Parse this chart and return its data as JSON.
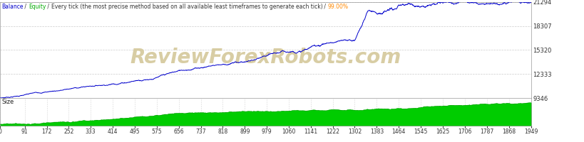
{
  "title_parts": [
    "Balance",
    " / ",
    "Equity",
    " / ",
    "Every tick (the most precise method based on all available least timeframes to generate each tick)",
    " / ",
    "99.00%"
  ],
  "title_part_colors": [
    "#0000cc",
    "#333333",
    "#00aa00",
    "#333333",
    "#333333",
    "#333333",
    "#ff8800"
  ],
  "y_min": 9346,
  "y_max": 21294,
  "y_ticks": [
    9346,
    12333,
    15320,
    18307,
    21294
  ],
  "x_ticks": [
    0,
    91,
    172,
    252,
    333,
    414,
    495,
    575,
    656,
    737,
    818,
    899,
    979,
    1060,
    1141,
    1222,
    1302,
    1383,
    1464,
    1545,
    1625,
    1706,
    1787,
    1868,
    1949
  ],
  "x_max": 1949,
  "background_color": "#ffffff",
  "plot_bg_color": "#ffffff",
  "grid_color": "#cccccc",
  "line_color": "#0000cc",
  "watermark_text": "ReviewForexRobots.com",
  "watermark_color": "#d4c89a",
  "size_label": "Size",
  "green_fill_color": "#00cc00",
  "green_border_color": "#009900"
}
